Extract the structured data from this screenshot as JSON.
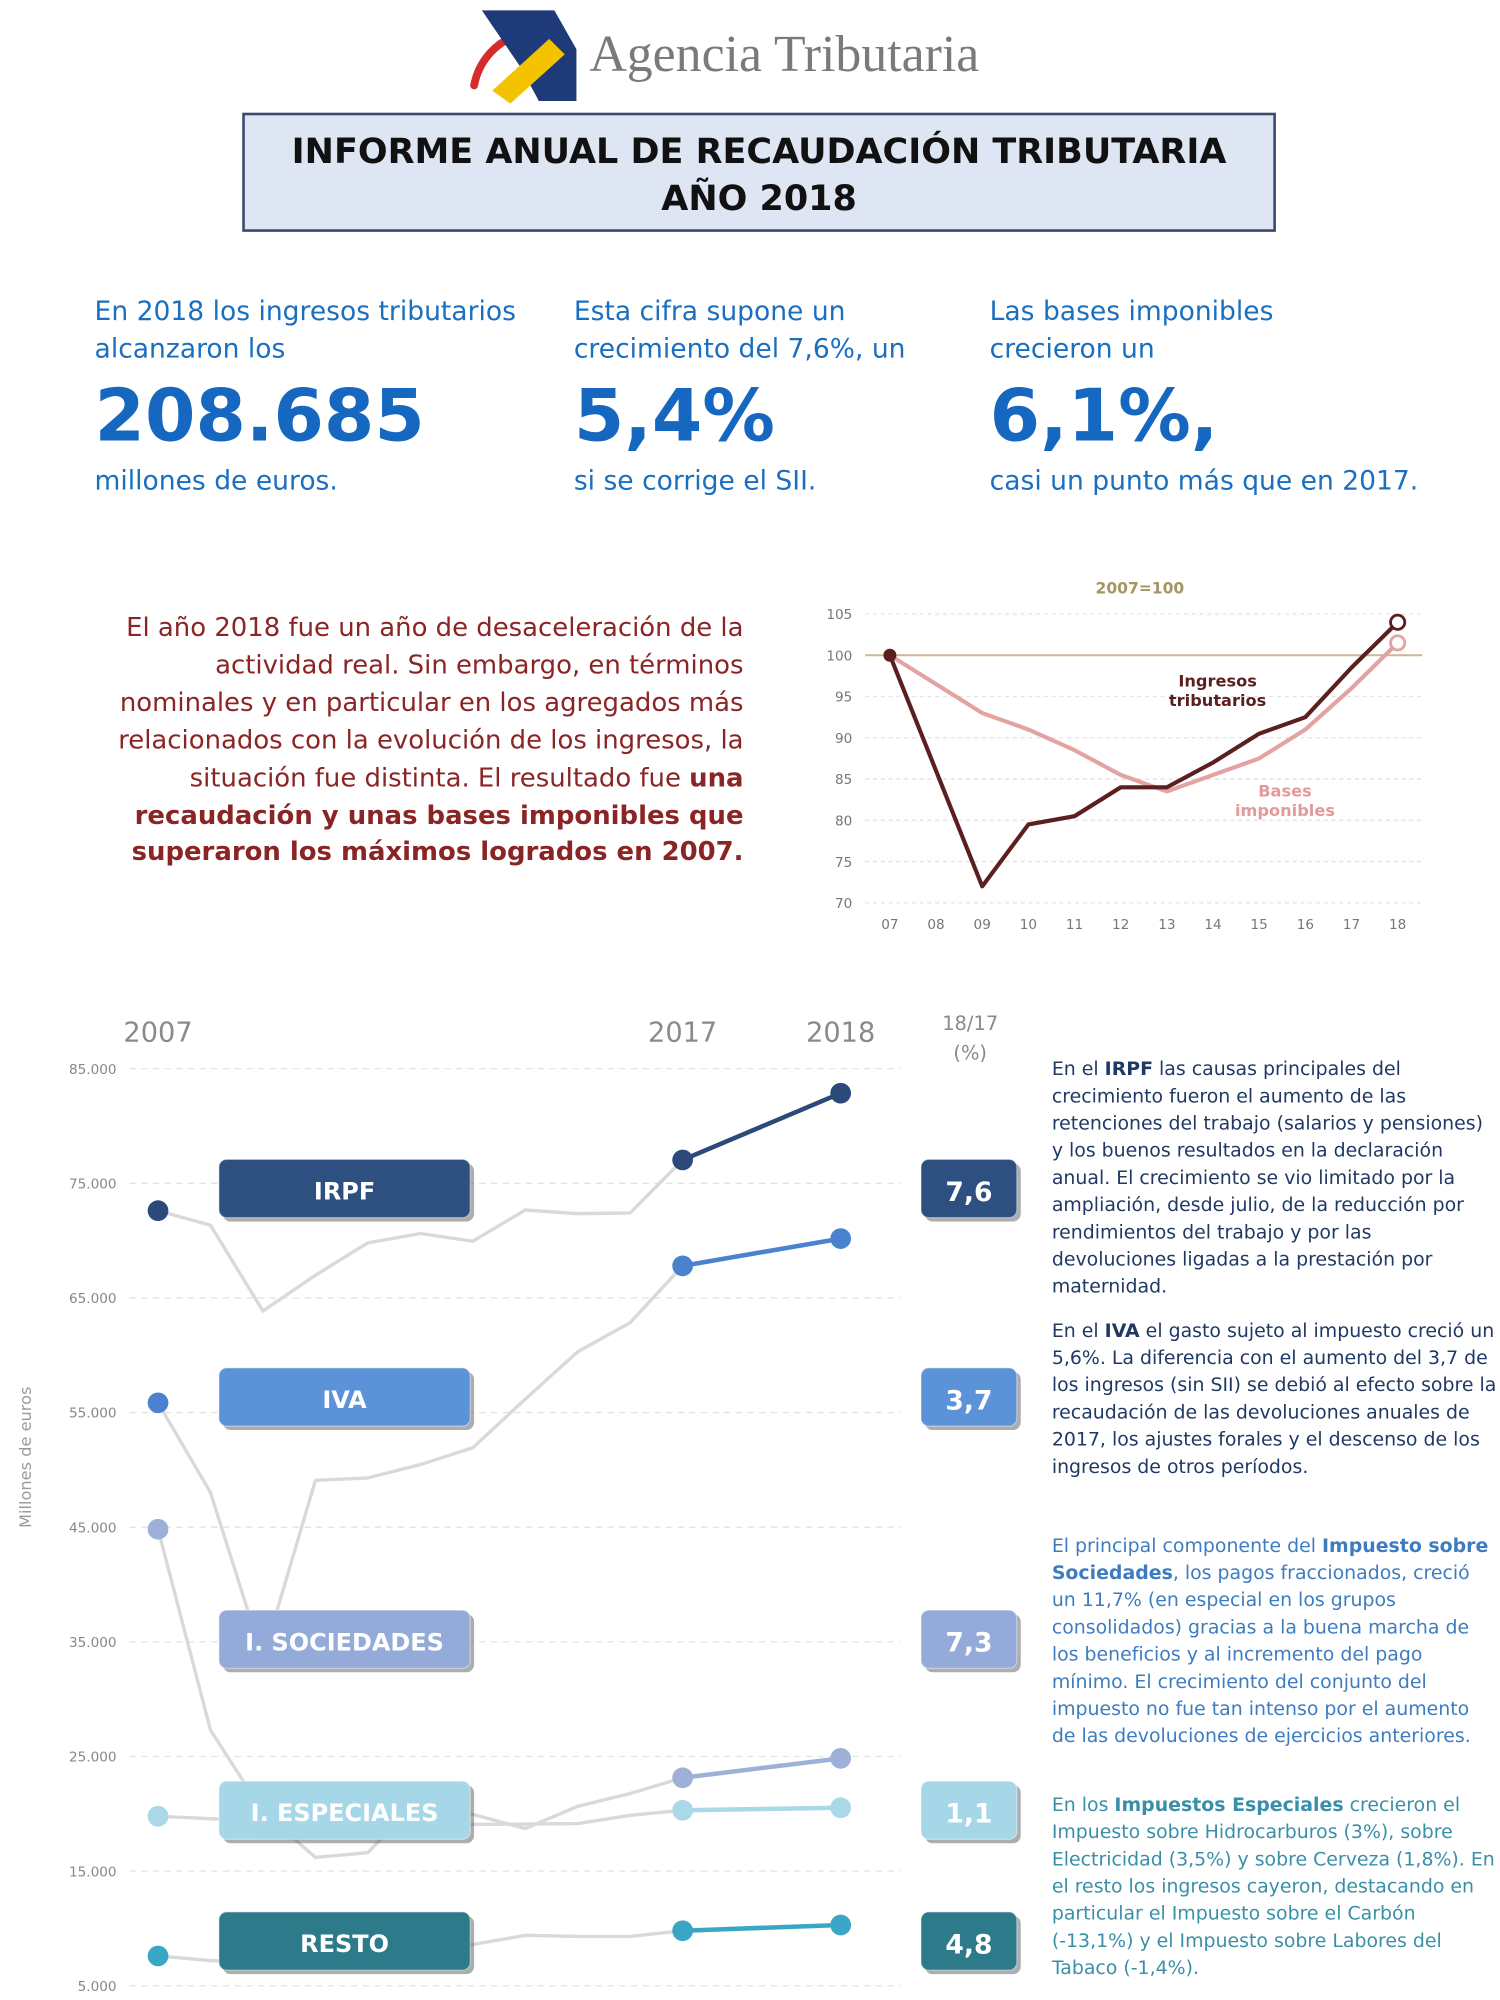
{
  "header": {
    "brand": "Agencia Tributaria",
    "title": [
      "INFORME ANUAL DE RECAUDACIÓN TRIBUTARIA",
      "AÑO 2018"
    ]
  },
  "stats": [
    {
      "intro": [
        "En 2018 los ingresos tributarios",
        "alcanzaron los"
      ],
      "big": "208.685",
      "outro": "millones de euros."
    },
    {
      "intro": [
        "Esta cifra supone un",
        "crecimiento del 7,6%, un"
      ],
      "big": "5,4%",
      "outro": "si se corrige el SII."
    },
    {
      "intro": [
        "Las bases imponibles",
        "crecieron un"
      ],
      "big": "6,1%,",
      "outro": "casi un punto más que en 2017."
    }
  ],
  "summary": [
    "El año 2018 fue un año de desaceleración de la actividad real. Sin embargo, en términos nominales y en particular en los agregados más relacionados con la evolución de los ingresos, la situación fue distinta. El resultado fue ",
    "una recaudación y unas bases imponibles que superaron los máximos logrados en 2007."
  ],
  "notes": [
    [
      "En el ",
      "IRPF",
      " las causas principales del crecimiento fueron el aumento de las retenciones del trabajo (salarios y pensiones) y los buenos resultados en la declaración anual. El crecimiento se vio limitado por la ampliación, desde julio, de la reducción por rendimientos del trabajo y por las devoluciones ligadas a la prestación por maternidad."
    ],
    [
      "En el ",
      "IVA",
      " el gasto sujeto al impuesto creció un 5,6%. La diferencia con el aumento del 3,7 de los ingresos (sin SII) se debió al efecto sobre la recaudación de las devoluciones anuales de 2017, los ajustes forales y el descenso de los ingresos de otros períodos."
    ],
    [
      "El principal componente del ",
      "Impuesto sobre Sociedades",
      ", los pagos fraccionados, creció un 11,7% (en especial en los grupos consolidados) gracias a la buena marcha de los beneficios y al incremento del pago mínimo. El crecimiento del conjunto del impuesto no fue tan intenso por el aumento de las devoluciones de ejercicios anteriores."
    ],
    [
      "En los ",
      "Impuestos Especiales",
      " crecieron el Impuesto sobre Hidrocarburos (3%), sobre Electricidad (3,5%) y sobre Cerveza (1,8%). En el resto los ingresos cayeron, destacando en particular el Impuesto sobre el Carbón (-13,1%) y el Impuesto sobre Labores del Tabaco (-1,4%)."
    ]
  ],
  "chart_data": [
    {
      "type": "line",
      "title": "2007=100",
      "categories": [
        "07",
        "08",
        "09",
        "10",
        "11",
        "12",
        "13",
        "14",
        "15",
        "16",
        "17",
        "18"
      ],
      "ylim": [
        70,
        105
      ],
      "yticks": [
        70,
        75,
        80,
        85,
        90,
        95,
        100,
        105
      ],
      "grid": true,
      "reference": 100,
      "reference_color": "#c8b98e",
      "series": [
        {
          "name": "Ingresos tributarios",
          "color": "#5c1f1f",
          "values": [
            100,
            86,
            72,
            79.5,
            80.5,
            84,
            84,
            87,
            90.5,
            92.5,
            98.5,
            104
          ]
        },
        {
          "name": "Bases imponibles",
          "color": "#e3a3a3",
          "values": [
            100,
            96.5,
            93,
            91,
            88.5,
            85.5,
            83.5,
            85.5,
            87.5,
            91,
            96,
            101.5
          ]
        }
      ]
    },
    {
      "type": "line",
      "y_label": "Millones de euros",
      "categories": [
        "2007",
        null,
        null,
        null,
        null,
        null,
        null,
        null,
        null,
        null,
        "2017",
        "2018"
      ],
      "ylim": [
        5000,
        85000
      ],
      "yticks": [
        {
          "value": 5000,
          "label": "5.000"
        },
        {
          "value": 15000,
          "label": "15.000"
        },
        {
          "value": 25000,
          "label": "25.000"
        },
        {
          "value": 35000,
          "label": "35.000"
        },
        {
          "value": 45000,
          "label": "45.000"
        },
        {
          "value": 55000,
          "label": "55.000"
        },
        {
          "value": 65000,
          "label": "65.000"
        },
        {
          "value": 75000,
          "label": "75.000"
        },
        {
          "value": 85000,
          "label": "85.000"
        }
      ],
      "grid": true,
      "context_color": "#d9d9d9",
      "growth_title": [
        "18/17",
        "(%)"
      ],
      "series": [
        {
          "name": "IRPF",
          "color": "#2b4a7a",
          "badge_color": "#2e5080",
          "values": [
            72614,
            71341,
            63857,
            66977,
            69803,
            70619,
            69951,
            72662,
            72346,
            72416,
            77038,
            82859
          ],
          "growth": 7.6,
          "growth_label": "7,6"
        },
        {
          "name": "IVA",
          "color": "#4a82d0",
          "badge_color": "#5b92d8",
          "values": [
            55851,
            48021,
            33567,
            49086,
            49302,
            50464,
            51931,
            56174,
            60305,
            62845,
            67800,
            70177
          ],
          "growth": 3.7,
          "growth_label": "3,7"
        },
        {
          "name": "I. SOCIEDADES",
          "color": "#9db0d8",
          "badge_color": "#94aad8",
          "values": [
            44823,
            27301,
            20188,
            16198,
            16611,
            21435,
            19945,
            18713,
            20649,
            21770,
            23143,
            24838
          ],
          "growth": 7.3,
          "growth_label": "7,3"
        },
        {
          "name": "I. ESPECIALES",
          "color": "#a9d8e8",
          "badge_color": "#a6d7e8",
          "values": [
            19786,
            19570,
            19349,
            19806,
            18983,
            18209,
            19073,
            19104,
            19147,
            19866,
            20308,
            20528
          ],
          "growth": 1.1,
          "growth_label": "1,1"
        },
        {
          "name": "RESTO",
          "color": "#3aa6c6",
          "badge_color": "#2c7a8a",
          "values": [
            7600,
            7200,
            7000,
            7500,
            7500,
            7800,
            8600,
            9400,
            9300,
            9300,
            9800,
            10300
          ],
          "growth": 4.8,
          "growth_label": "4,8"
        }
      ]
    }
  ]
}
